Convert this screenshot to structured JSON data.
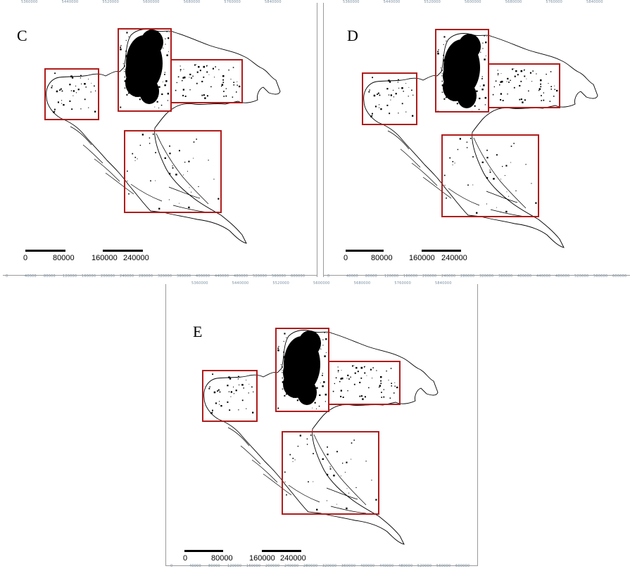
{
  "figure": {
    "panels": [
      {
        "id": "C",
        "label": "C",
        "top_ticks": [
          "5360000",
          "5440000",
          "5520000",
          "5600000",
          "5680000",
          "5760000",
          "5840000"
        ],
        "bottom_ticks": [
          "0",
          "40000",
          "80000",
          "120000",
          "160000",
          "200000",
          "240000",
          "280000",
          "320000",
          "360000",
          "400000",
          "440000",
          "480000",
          "520000",
          "560000",
          "600000"
        ],
        "scale_labels": [
          "0",
          "80000",
          "160000",
          "240000"
        ]
      },
      {
        "id": "D",
        "label": "D",
        "top_ticks": [
          "5360000",
          "5440000",
          "5520000",
          "5600000",
          "5680000",
          "5760000",
          "5840000"
        ],
        "bottom_ticks": [
          "0",
          "40000",
          "80000",
          "120000",
          "160000",
          "200000",
          "240000",
          "280000",
          "320000",
          "360000",
          "400000",
          "440000",
          "480000",
          "520000",
          "560000",
          "600000"
        ],
        "scale_labels": [
          "0",
          "80000",
          "160000",
          "240000"
        ]
      },
      {
        "id": "E",
        "label": "E",
        "top_ticks": [
          "5360000",
          "5440000",
          "5520000",
          "5600000",
          "5680000",
          "5760000",
          "5840000"
        ],
        "bottom_ticks": [
          "0",
          "40000",
          "80000",
          "120000",
          "160000",
          "200000",
          "240000",
          "280000",
          "320000",
          "360000",
          "400000",
          "440000",
          "480000",
          "520000",
          "560000",
          "600000"
        ],
        "scale_labels": [
          "0",
          "80000",
          "160000",
          "240000"
        ]
      }
    ],
    "highlight_color": "#b01c1c",
    "boundary_color": "#000000"
  }
}
